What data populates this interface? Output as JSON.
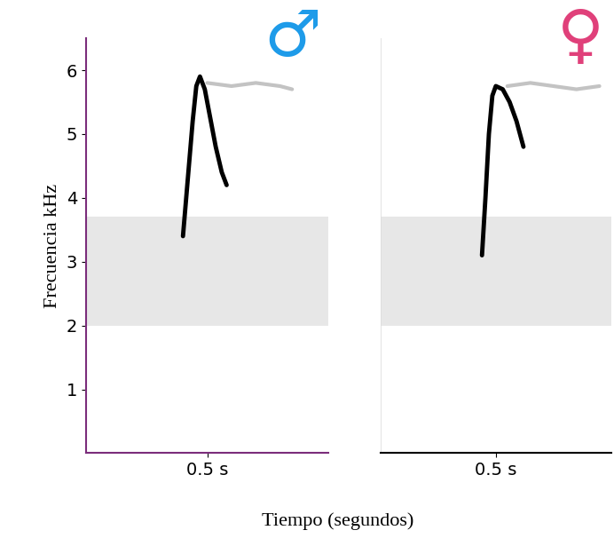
{
  "chart_data": [
    {
      "type": "spectrogram",
      "title": {
        "text": "♂",
        "color": "#1e9be9"
      },
      "ylabel": "Frecuencia kHz",
      "xlim": [
        0,
        1
      ],
      "xticks": [
        {
          "value": 0.5,
          "label": "0.5 s"
        }
      ],
      "ylim": [
        0,
        6.5
      ],
      "yticks": [
        1,
        2,
        3,
        4,
        5,
        6
      ],
      "tick_labels": true,
      "axis_color": "#7b2d7b",
      "background_noise": [
        2.0,
        3.7
      ],
      "call": {
        "x": [
          0.4,
          0.42,
          0.44,
          0.455,
          0.47,
          0.49,
          0.51,
          0.535,
          0.56,
          0.58
        ],
        "values": [
          3.4,
          4.3,
          5.2,
          5.75,
          5.9,
          5.7,
          5.3,
          4.8,
          4.4,
          4.2
        ],
        "color": "#000000"
      },
      "reverb": {
        "x": [
          0.5,
          0.6,
          0.7,
          0.8,
          0.85
        ],
        "values": [
          5.8,
          5.75,
          5.8,
          5.75,
          5.7
        ],
        "color": "#888888"
      }
    },
    {
      "type": "spectrogram",
      "title": {
        "text": "♀",
        "color": "#e0407a"
      },
      "xlim": [
        0,
        1
      ],
      "xticks": [
        {
          "value": 0.5,
          "label": "0.5 s"
        }
      ],
      "ylim": [
        0,
        6.5
      ],
      "tick_labels": "x",
      "axis_color": "#000000",
      "background_noise": [
        2.0,
        3.7
      ],
      "call": {
        "x": [
          0.44,
          0.455,
          0.47,
          0.485,
          0.5,
          0.53,
          0.56,
          0.59,
          0.62
        ],
        "values": [
          3.1,
          4.0,
          5.0,
          5.6,
          5.75,
          5.7,
          5.5,
          5.2,
          4.8
        ],
        "color": "#000000"
      },
      "reverb": {
        "x": [
          0.55,
          0.65,
          0.75,
          0.85,
          0.95
        ],
        "values": [
          5.75,
          5.8,
          5.75,
          5.7,
          5.75
        ],
        "color": "#888888"
      }
    }
  ],
  "xlabel": "Tiempo (segundos)"
}
